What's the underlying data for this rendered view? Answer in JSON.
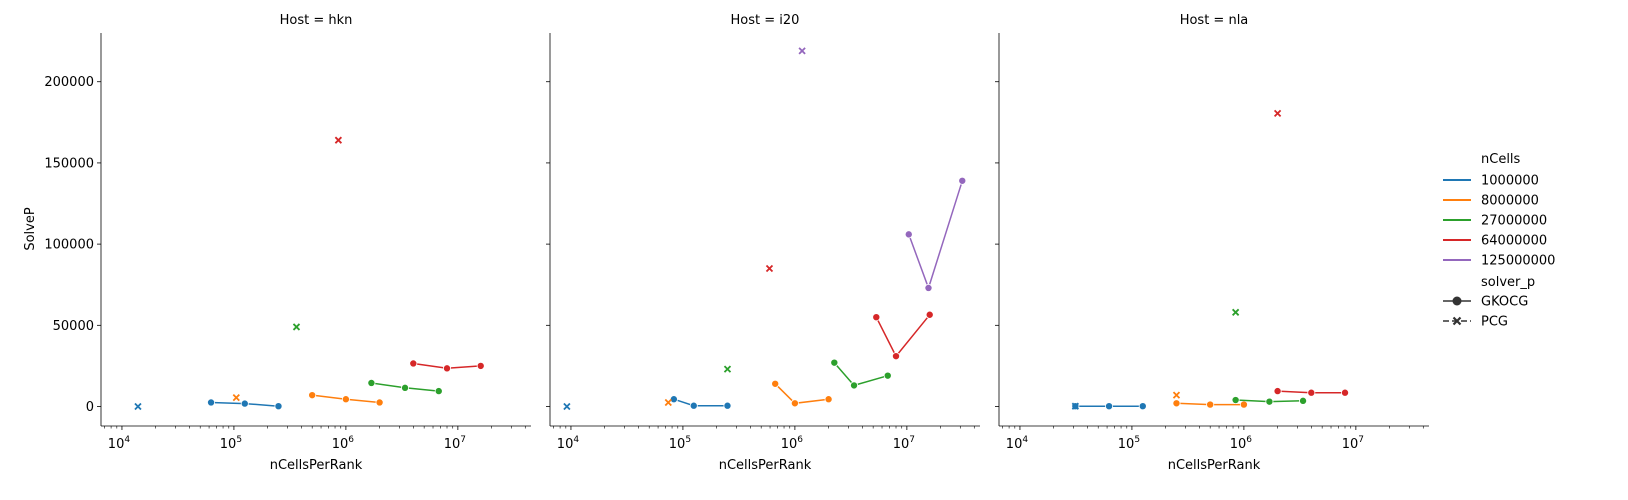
{
  "chart_data": {
    "type": "line",
    "facet_label": "Host",
    "facets": [
      "hkn",
      "i20",
      "nla"
    ],
    "panel_titles": [
      "Host = hkn",
      "Host = i20",
      "Host = nla"
    ],
    "xlabel": "nCellsPerRank",
    "ylabel": "SolveP",
    "xscale": "log",
    "xlim": [
      6500,
      45000000
    ],
    "ylim": [
      -12000,
      230000
    ],
    "x_tick_values": [
      10000,
      100000,
      1000000,
      10000000
    ],
    "x_ticks": [
      {
        "base": "10",
        "exp": "4"
      },
      {
        "base": "10",
        "exp": "5"
      },
      {
        "base": "10",
        "exp": "6"
      },
      {
        "base": "10",
        "exp": "7"
      }
    ],
    "y_tick_values": [
      0,
      50000,
      100000,
      150000,
      200000
    ],
    "y_ticks": [
      "0",
      "50000",
      "100000",
      "150000",
      "200000"
    ],
    "grid": false,
    "legend_position": "right",
    "legend": {
      "hue_title": "nCells",
      "hue_entries": [
        {
          "label": "1000000",
          "color": "#1f77b4"
        },
        {
          "label": "8000000",
          "color": "#ff7f0e"
        },
        {
          "label": "27000000",
          "color": "#2ca02c"
        },
        {
          "label": "64000000",
          "color": "#d62728"
        },
        {
          "label": "125000000",
          "color": "#9467bd"
        }
      ],
      "style_title": "solver_p",
      "style_entries": [
        {
          "label": "GKOCG",
          "marker": "circle",
          "dash": "solid"
        },
        {
          "label": "PCG",
          "marker": "x",
          "dash": "dashed"
        }
      ]
    },
    "panels": [
      {
        "facet": "hkn",
        "series": [
          {
            "nCells": "1000000",
            "color": "#1f77b4",
            "solver": "GKOCG",
            "x": [
              62500,
              125000,
              250000
            ],
            "y": [
              2500,
              1800,
              200
            ]
          },
          {
            "nCells": "1000000",
            "color": "#1f77b4",
            "solver": "PCG",
            "x": [
              13900
            ],
            "y": [
              0
            ]
          },
          {
            "nCells": "8000000",
            "color": "#ff7f0e",
            "solver": "GKOCG",
            "x": [
              500000,
              1000000,
              2000000
            ],
            "y": [
              7000,
              4500,
              2500
            ]
          },
          {
            "nCells": "8000000",
            "color": "#ff7f0e",
            "solver": "PCG",
            "x": [
              105000
            ],
            "y": [
              5500
            ]
          },
          {
            "nCells": "27000000",
            "color": "#2ca02c",
            "solver": "GKOCG",
            "x": [
              1690000,
              3375000,
              6750000
            ],
            "y": [
              14500,
              11500,
              9500
            ]
          },
          {
            "nCells": "27000000",
            "color": "#2ca02c",
            "solver": "PCG",
            "x": [
              362000
            ],
            "y": [
              49000
            ]
          },
          {
            "nCells": "64000000",
            "color": "#d62728",
            "solver": "GKOCG",
            "x": [
              4000000,
              8000000,
              16000000
            ],
            "y": [
              26500,
              23500,
              25000
            ]
          },
          {
            "nCells": "64000000",
            "color": "#d62728",
            "solver": "PCG",
            "x": [
              857000
            ],
            "y": [
              164000
            ]
          }
        ]
      },
      {
        "facet": "i20",
        "series": [
          {
            "nCells": "1000000",
            "color": "#1f77b4",
            "solver": "GKOCG",
            "x": [
              83000,
              125000,
              250000
            ],
            "y": [
              4500,
              500,
              500
            ]
          },
          {
            "nCells": "1000000",
            "color": "#1f77b4",
            "solver": "PCG",
            "x": [
              9200
            ],
            "y": [
              0
            ]
          },
          {
            "nCells": "8000000",
            "color": "#ff7f0e",
            "solver": "GKOCG",
            "x": [
              667000,
              1000000,
              2000000
            ],
            "y": [
              14000,
              2000,
              4500
            ]
          },
          {
            "nCells": "8000000",
            "color": "#ff7f0e",
            "solver": "PCG",
            "x": [
              74000
            ],
            "y": [
              2500
            ]
          },
          {
            "nCells": "27000000",
            "color": "#2ca02c",
            "solver": "GKOCG",
            "x": [
              2250000,
              3375000,
              6750000
            ],
            "y": [
              27000,
              13000,
              19000
            ]
          },
          {
            "nCells": "27000000",
            "color": "#2ca02c",
            "solver": "PCG",
            "x": [
              250000
            ],
            "y": [
              23000
            ]
          },
          {
            "nCells": "64000000",
            "color": "#d62728",
            "solver": "GKOCG",
            "x": [
              5333000,
              8000000,
              16000000
            ],
            "y": [
              55000,
              31000,
              56500
            ]
          },
          {
            "nCells": "64000000",
            "color": "#d62728",
            "solver": "PCG",
            "x": [
              593000
            ],
            "y": [
              85000
            ]
          },
          {
            "nCells": "125000000",
            "color": "#9467bd",
            "solver": "GKOCG",
            "x": [
              10400000,
              15600000,
              31250000
            ],
            "y": [
              106000,
              73000,
              139000
            ]
          },
          {
            "nCells": "125000000",
            "color": "#9467bd",
            "solver": "PCG",
            "x": [
              1160000
            ],
            "y": [
              219000
            ]
          }
        ]
      },
      {
        "facet": "nla",
        "series": [
          {
            "nCells": "1000000",
            "color": "#1f77b4",
            "solver": "GKOCG",
            "x": [
              31250,
              62500,
              125000
            ],
            "y": [
              200,
              200,
              200
            ]
          },
          {
            "nCells": "1000000",
            "color": "#1f77b4",
            "solver": "PCG",
            "x": [
              31250
            ],
            "y": [
              200
            ]
          },
          {
            "nCells": "8000000",
            "color": "#ff7f0e",
            "solver": "GKOCG",
            "x": [
              250000,
              500000,
              1000000
            ],
            "y": [
              2000,
              1200,
              1200
            ]
          },
          {
            "nCells": "8000000",
            "color": "#ff7f0e",
            "solver": "PCG",
            "x": [
              250000
            ],
            "y": [
              7000
            ]
          },
          {
            "nCells": "27000000",
            "color": "#2ca02c",
            "solver": "GKOCG",
            "x": [
              843750,
              1690000,
              3375000
            ],
            "y": [
              4000,
              3000,
              3500
            ]
          },
          {
            "nCells": "27000000",
            "color": "#2ca02c",
            "solver": "PCG",
            "x": [
              843750
            ],
            "y": [
              58000
            ]
          },
          {
            "nCells": "64000000",
            "color": "#d62728",
            "solver": "GKOCG",
            "x": [
              2000000,
              4000000,
              8000000
            ],
            "y": [
              9500,
              8500,
              8500
            ]
          },
          {
            "nCells": "64000000",
            "color": "#d62728",
            "solver": "PCG",
            "x": [
              2000000
            ],
            "y": [
              180500
            ]
          }
        ]
      }
    ]
  }
}
